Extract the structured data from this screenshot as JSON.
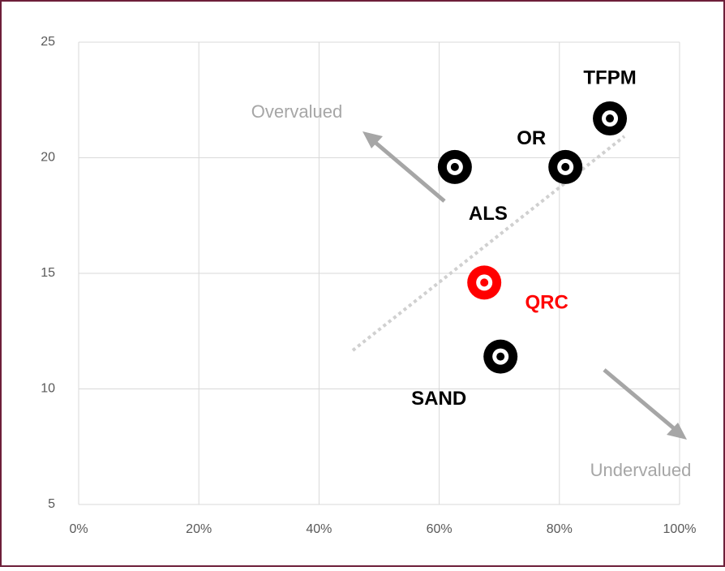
{
  "chart_data": {
    "type": "scatter",
    "points": [
      {
        "name": "TFPM",
        "x": 88.4,
        "y": 21.7,
        "color": "#000000"
      },
      {
        "name": "OR",
        "x": 81.0,
        "y": 19.6,
        "color": "#000000"
      },
      {
        "name": "ALS",
        "x": 62.6,
        "y": 19.6,
        "color": "#000000"
      },
      {
        "name": "QRC",
        "x": 67.5,
        "y": 14.6,
        "color": "#ff0000"
      },
      {
        "name": "SAND",
        "x": 70.2,
        "y": 11.4,
        "color": "#000000"
      }
    ],
    "xlim": [
      0,
      100
    ],
    "xticks": [
      {
        "value": 0,
        "label": "0%"
      },
      {
        "value": 20,
        "label": "20%"
      },
      {
        "value": 40,
        "label": "40%"
      },
      {
        "value": 60,
        "label": "60%"
      },
      {
        "value": 80,
        "label": "80%"
      },
      {
        "value": 100,
        "label": "100%"
      }
    ],
    "ylim": [
      5,
      25
    ],
    "yticks": [
      5,
      10,
      15,
      20,
      25
    ],
    "grid": true,
    "annotations": [
      "Overvalued",
      "Undervalued"
    ]
  }
}
